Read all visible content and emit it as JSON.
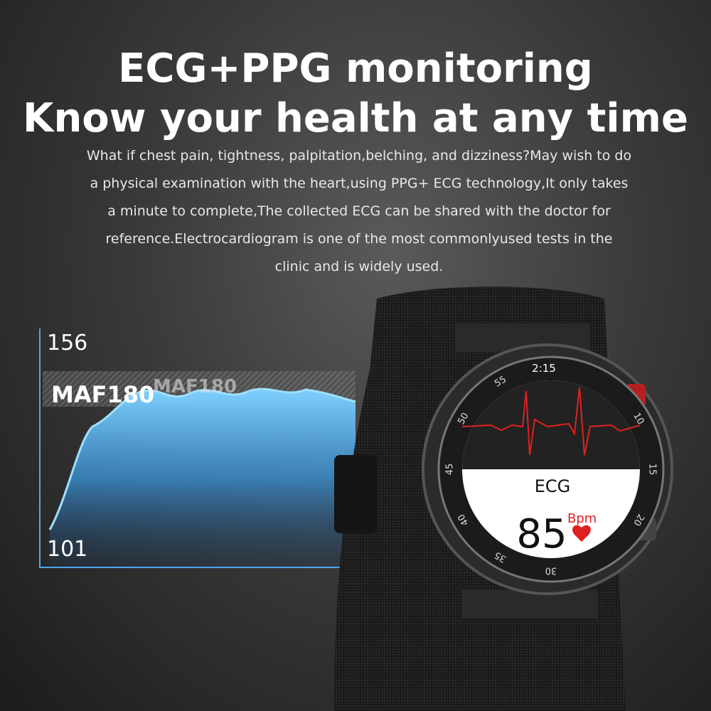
{
  "header": {
    "title_lines": [
      "ECG+PPG monitoring",
      "Know your health at any time"
    ],
    "description_lines": [
      "What if chest pain, tightness, palpitation,belching, and dizziness?May wish to do",
      "a physical examination with the heart,using PPG+ ECG technology,It only takes",
      "a minute to complete,The collected ECG can be shared with the doctor for",
      "reference.Electrocardiogram is one of the most commonlyused tests in the",
      "clinic and is widely used."
    ]
  },
  "graphic": {
    "top_label": "156",
    "bottom_label": "101",
    "tag": "MAF180",
    "ghost_tag": "MAF180"
  },
  "watch": {
    "time": "2:15",
    "mode": "ECG",
    "heart_rate": "85",
    "unit": "Bpm",
    "bezel_numbers": [
      "10",
      "15",
      "20",
      "30",
      "35",
      "40",
      "45",
      "50",
      "55"
    ]
  }
}
